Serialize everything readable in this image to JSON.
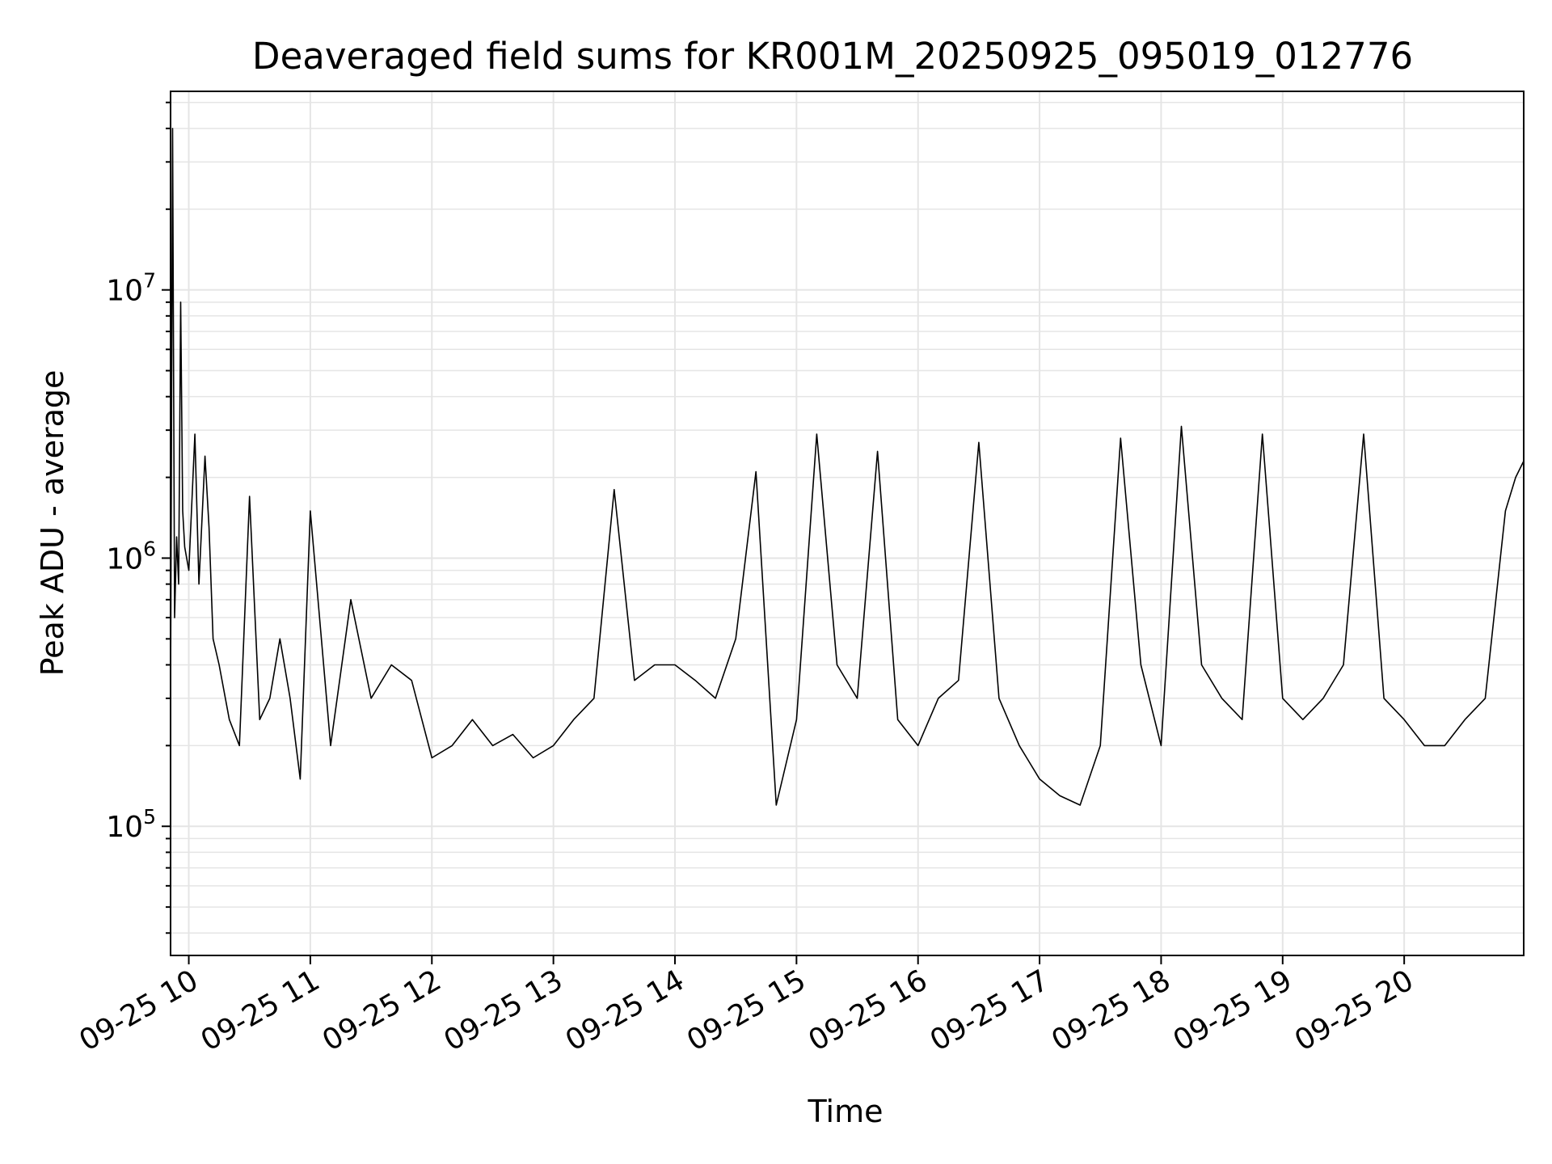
{
  "chart_data": {
    "type": "line",
    "title": "Deaveraged field sums for KR001M_20250925_095019_012776",
    "xlabel": "Time",
    "ylabel": "Peak ADU - average",
    "x_axis": {
      "type": "time",
      "range": [
        "2025-09-25T09:51:00",
        "2025-09-25T20:59:00"
      ],
      "ticks": [
        {
          "value": "2025-09-25T10:00:00",
          "label": "09-25 10"
        },
        {
          "value": "2025-09-25T11:00:00",
          "label": "09-25 11"
        },
        {
          "value": "2025-09-25T12:00:00",
          "label": "09-25 12"
        },
        {
          "value": "2025-09-25T13:00:00",
          "label": "09-25 13"
        },
        {
          "value": "2025-09-25T14:00:00",
          "label": "09-25 14"
        },
        {
          "value": "2025-09-25T15:00:00",
          "label": "09-25 15"
        },
        {
          "value": "2025-09-25T16:00:00",
          "label": "09-25 16"
        },
        {
          "value": "2025-09-25T17:00:00",
          "label": "09-25 17"
        },
        {
          "value": "2025-09-25T18:00:00",
          "label": "09-25 18"
        },
        {
          "value": "2025-09-25T19:00:00",
          "label": "09-25 19"
        },
        {
          "value": "2025-09-25T20:00:00",
          "label": "09-25 20"
        }
      ]
    },
    "y_axis": {
      "scale": "log",
      "range": [
        33000,
        55000000
      ],
      "ticks": [
        {
          "value": 100000,
          "base": "10",
          "exp": "5"
        },
        {
          "value": 1000000,
          "base": "10",
          "exp": "6"
        },
        {
          "value": 10000000,
          "base": "10",
          "exp": "7"
        }
      ]
    },
    "grid": true,
    "legend": "none",
    "line_color": "#000000",
    "grid_color": "#e5e5e5",
    "series": [
      {
        "x": [
          "2025-09-25T09:51:00",
          "2025-09-25T09:52:00",
          "2025-09-25T09:53:00",
          "2025-09-25T09:54:00",
          "2025-09-25T09:55:00",
          "2025-09-25T09:56:00",
          "2025-09-25T09:57:00",
          "2025-09-25T09:58:00",
          "2025-09-25T10:00:00",
          "2025-09-25T10:03:00",
          "2025-09-25T10:05:00",
          "2025-09-25T10:08:00",
          "2025-09-25T10:10:00",
          "2025-09-25T10:12:00",
          "2025-09-25T10:15:00",
          "2025-09-25T10:20:00",
          "2025-09-25T10:25:00",
          "2025-09-25T10:30:00",
          "2025-09-25T10:35:00",
          "2025-09-25T10:40:00",
          "2025-09-25T10:45:00",
          "2025-09-25T10:50:00",
          "2025-09-25T10:55:00",
          "2025-09-25T11:00:00",
          "2025-09-25T11:10:00",
          "2025-09-25T11:20:00",
          "2025-09-25T11:30:00",
          "2025-09-25T11:40:00",
          "2025-09-25T11:50:00",
          "2025-09-25T12:00:00",
          "2025-09-25T12:10:00",
          "2025-09-25T12:20:00",
          "2025-09-25T12:30:00",
          "2025-09-25T12:40:00",
          "2025-09-25T12:50:00",
          "2025-09-25T13:00:00",
          "2025-09-25T13:10:00",
          "2025-09-25T13:20:00",
          "2025-09-25T13:30:00",
          "2025-09-25T13:40:00",
          "2025-09-25T13:50:00",
          "2025-09-25T14:00:00",
          "2025-09-25T14:10:00",
          "2025-09-25T14:20:00",
          "2025-09-25T14:30:00",
          "2025-09-25T14:40:00",
          "2025-09-25T14:50:00",
          "2025-09-25T15:00:00",
          "2025-09-25T15:10:00",
          "2025-09-25T15:20:00",
          "2025-09-25T15:30:00",
          "2025-09-25T15:40:00",
          "2025-09-25T15:50:00",
          "2025-09-25T16:00:00",
          "2025-09-25T16:10:00",
          "2025-09-25T16:20:00",
          "2025-09-25T16:30:00",
          "2025-09-25T16:40:00",
          "2025-09-25T16:50:00",
          "2025-09-25T17:00:00",
          "2025-09-25T17:10:00",
          "2025-09-25T17:20:00",
          "2025-09-25T17:30:00",
          "2025-09-25T17:40:00",
          "2025-09-25T17:50:00",
          "2025-09-25T18:00:00",
          "2025-09-25T18:10:00",
          "2025-09-25T18:20:00",
          "2025-09-25T18:30:00",
          "2025-09-25T18:40:00",
          "2025-09-25T18:50:00",
          "2025-09-25T19:00:00",
          "2025-09-25T19:10:00",
          "2025-09-25T19:20:00",
          "2025-09-25T19:30:00",
          "2025-09-25T19:40:00",
          "2025-09-25T19:50:00",
          "2025-09-25T20:00:00",
          "2025-09-25T20:10:00",
          "2025-09-25T20:20:00",
          "2025-09-25T20:30:00",
          "2025-09-25T20:40:00",
          "2025-09-25T20:50:00",
          "2025-09-25T20:55:00",
          "2025-09-25T20:59:00"
        ],
        "y": [
          300000,
          40000000,
          600000,
          1200000,
          800000,
          9000000,
          1500000,
          1100000,
          900000,
          2900000,
          800000,
          2400000,
          1300000,
          500000,
          400000,
          250000,
          200000,
          1700000,
          250000,
          300000,
          500000,
          300000,
          150000,
          1500000,
          200000,
          700000,
          300000,
          400000,
          350000,
          180000,
          200000,
          250000,
          200000,
          220000,
          180000,
          200000,
          250000,
          300000,
          1800000,
          350000,
          400000,
          400000,
          350000,
          300000,
          500000,
          2100000,
          120000,
          250000,
          2900000,
          400000,
          300000,
          2500000,
          250000,
          200000,
          300000,
          350000,
          2700000,
          300000,
          200000,
          150000,
          130000,
          120000,
          200000,
          2800000,
          400000,
          200000,
          3100000,
          400000,
          300000,
          250000,
          2900000,
          300000,
          250000,
          300000,
          400000,
          2900000,
          300000,
          250000,
          200000,
          200000,
          250000,
          300000,
          1500000,
          2000000,
          2300000
        ]
      }
    ]
  }
}
